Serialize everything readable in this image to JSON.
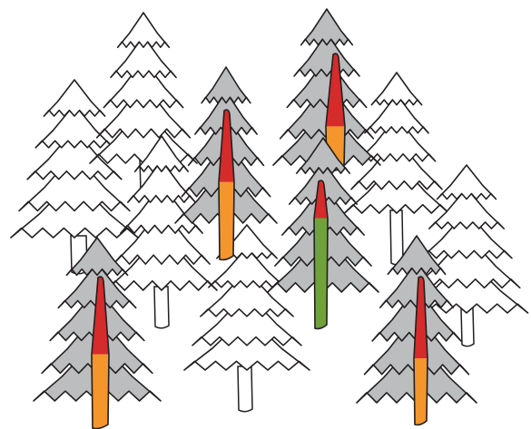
{
  "colors": {
    "background": "#ffffff",
    "outline": "#231f20",
    "white_tree_fill": "#ffffff",
    "gray_tree_fill": "#bcbdbf",
    "band_red": "#d52b2b",
    "band_orange": "#f4962b",
    "band_green": "#6fa33a"
  },
  "trees": [
    {
      "name": "white-tree-back-left",
      "kind": "white",
      "trunk": "plain"
    },
    {
      "name": "white-tree-back-center",
      "kind": "white",
      "trunk": "plain"
    },
    {
      "name": "white-tree-middle",
      "kind": "white",
      "trunk": "plain"
    },
    {
      "name": "white-tree-right-upper",
      "kind": "white",
      "trunk": "plain"
    },
    {
      "name": "white-tree-right-lower",
      "kind": "white",
      "trunk": "plain"
    },
    {
      "name": "white-tree-front-center",
      "kind": "white",
      "trunk": "plain"
    },
    {
      "name": "gray-tree-top-right",
      "kind": "gray",
      "trunk_bands": [
        "red",
        "orange"
      ],
      "red_share": 0.62
    },
    {
      "name": "gray-tree-upper-center",
      "kind": "gray",
      "trunk_bands": [
        "red",
        "orange"
      ],
      "red_share": 0.48
    },
    {
      "name": "gray-tree-middle-right",
      "kind": "gray",
      "trunk_bands": [
        "red",
        "green"
      ],
      "red_share": 0.25
    },
    {
      "name": "gray-tree-front-left",
      "kind": "gray",
      "trunk_bands": [
        "red",
        "orange"
      ],
      "red_share": 0.51
    },
    {
      "name": "gray-tree-front-right",
      "kind": "gray",
      "trunk_bands": [
        "red",
        "orange"
      ],
      "red_share": 0.55
    }
  ]
}
